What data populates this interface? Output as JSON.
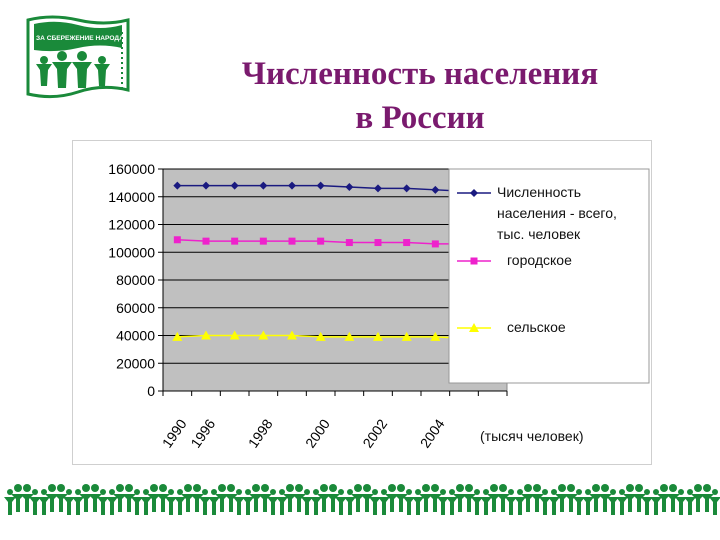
{
  "logo": {
    "text": "ЗА СБЕРЕЖЕНИЕ НАРОДА",
    "color": "#1a8a3a"
  },
  "title": {
    "line1": "Численность населения",
    "line2": "в России",
    "color": "#7a1a6e"
  },
  "unit_note": "(тысяч человек)",
  "chart_data": {
    "type": "line",
    "x_positions": [
      "1990",
      "1996",
      "",
      "1998",
      "",
      "2000",
      "",
      "2002",
      "",
      "2004",
      "",
      ""
    ],
    "x_tick_labels": [
      "1990",
      "1996",
      "1998",
      "2000",
      "2002",
      "2004"
    ],
    "ylim": [
      0,
      160000
    ],
    "y_ticks": [
      "0",
      "20000",
      "40000",
      "60000",
      "80000",
      "100000",
      "120000",
      "140000",
      "160000"
    ],
    "grid": true,
    "plot_background": "#c0c0c0",
    "legend_position": "right",
    "series": [
      {
        "name": "Численность населения - всего, тыс. человек",
        "name_lines": [
          "Численность",
          "населения - всего,",
          "тыс. человек"
        ],
        "color": "#1a1a80",
        "marker": "diamond",
        "values": [
          148000,
          148000,
          148000,
          148000,
          148000,
          148000,
          147000,
          146000,
          146000,
          145000,
          144000,
          143000
        ]
      },
      {
        "name": "городское",
        "name_lines": [
          "городское"
        ],
        "color": "#ee22cc",
        "marker": "square",
        "values": [
          109000,
          108000,
          108000,
          108000,
          108000,
          108000,
          107000,
          107000,
          107000,
          106000,
          106000,
          105000
        ]
      },
      {
        "name": "сельское",
        "name_lines": [
          "сельское"
        ],
        "color": "#ffff00",
        "marker": "triangle",
        "values": [
          39000,
          40000,
          40000,
          40000,
          40000,
          39000,
          39000,
          39000,
          39000,
          39000,
          38000,
          39000
        ]
      }
    ]
  }
}
